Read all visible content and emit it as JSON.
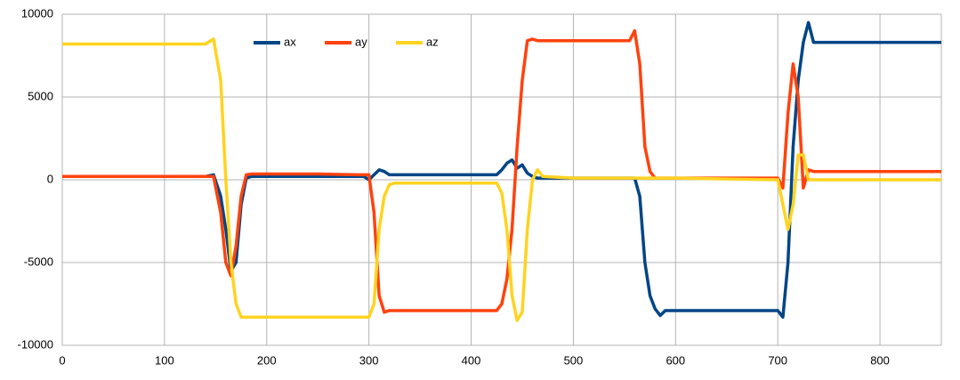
{
  "chart_data": {
    "type": "line",
    "x": [
      0,
      50,
      100,
      140,
      148,
      155,
      160,
      165,
      170,
      175,
      180,
      185,
      200,
      250,
      290,
      295,
      300,
      305,
      310,
      315,
      320,
      325,
      330,
      350,
      400,
      420,
      425,
      430,
      435,
      440,
      445,
      450,
      455,
      460,
      465,
      470,
      500,
      550,
      555,
      560,
      565,
      570,
      575,
      580,
      585,
      590,
      600,
      650,
      700,
      705,
      710,
      715,
      720,
      725,
      730,
      735,
      740,
      750,
      800,
      860
    ],
    "series": [
      {
        "name": "ax",
        "color": "#004586",
        "values": [
          200,
          200,
          200,
          200,
          300,
          -1000,
          -3000,
          -5500,
          -5000,
          -1500,
          100,
          200,
          200,
          200,
          200,
          200,
          0,
          300,
          600,
          500,
          300,
          300,
          300,
          300,
          300,
          300,
          300,
          600,
          1000,
          1200,
          700,
          900,
          400,
          200,
          100,
          100,
          100,
          100,
          100,
          100,
          -1000,
          -5000,
          -7000,
          -7800,
          -8200,
          -7900,
          -7900,
          -7900,
          -7900,
          -8300,
          -5000,
          2000,
          6000,
          8300,
          9500,
          8300,
          8300,
          8300,
          8300,
          8300
        ]
      },
      {
        "name": "ay",
        "color": "#ff420e",
        "values": [
          200,
          200,
          200,
          200,
          200,
          -2000,
          -5000,
          -5800,
          -4000,
          -1000,
          300,
          350,
          350,
          350,
          300,
          300,
          300,
          -2000,
          -7000,
          -8000,
          -7900,
          -7900,
          -7900,
          -7900,
          -7900,
          -7900,
          -7900,
          -7500,
          -6000,
          -3000,
          2000,
          6000,
          8400,
          8500,
          8400,
          8400,
          8400,
          8400,
          8400,
          9000,
          7000,
          2000,
          500,
          100,
          100,
          100,
          100,
          100,
          100,
          -500,
          4000,
          7000,
          5000,
          -500,
          600,
          500,
          500,
          500,
          500,
          500
        ]
      },
      {
        "name": "az",
        "color": "#ffd320",
        "values": [
          8200,
          8200,
          8200,
          8200,
          8500,
          6000,
          0,
          -5000,
          -7500,
          -8300,
          -8300,
          -8300,
          -8300,
          -8300,
          -8300,
          -8300,
          -8300,
          -7500,
          -3000,
          -1000,
          -300,
          -200,
          -200,
          -200,
          -200,
          -200,
          -200,
          -800,
          -3000,
          -7000,
          -8500,
          -8000,
          -3000,
          0,
          600,
          200,
          100,
          100,
          100,
          100,
          100,
          100,
          100,
          100,
          100,
          100,
          100,
          50,
          0,
          -1500,
          -3000,
          -1500,
          1500,
          1500,
          0,
          0,
          0,
          0,
          0,
          0
        ]
      }
    ],
    "xlim": [
      0,
      860
    ],
    "ylim": [
      -10000,
      10000
    ],
    "xticks": [
      0,
      100,
      200,
      300,
      400,
      500,
      600,
      700,
      800
    ],
    "yticks": [
      -10000,
      -5000,
      0,
      5000,
      10000
    ],
    "grid": true
  }
}
